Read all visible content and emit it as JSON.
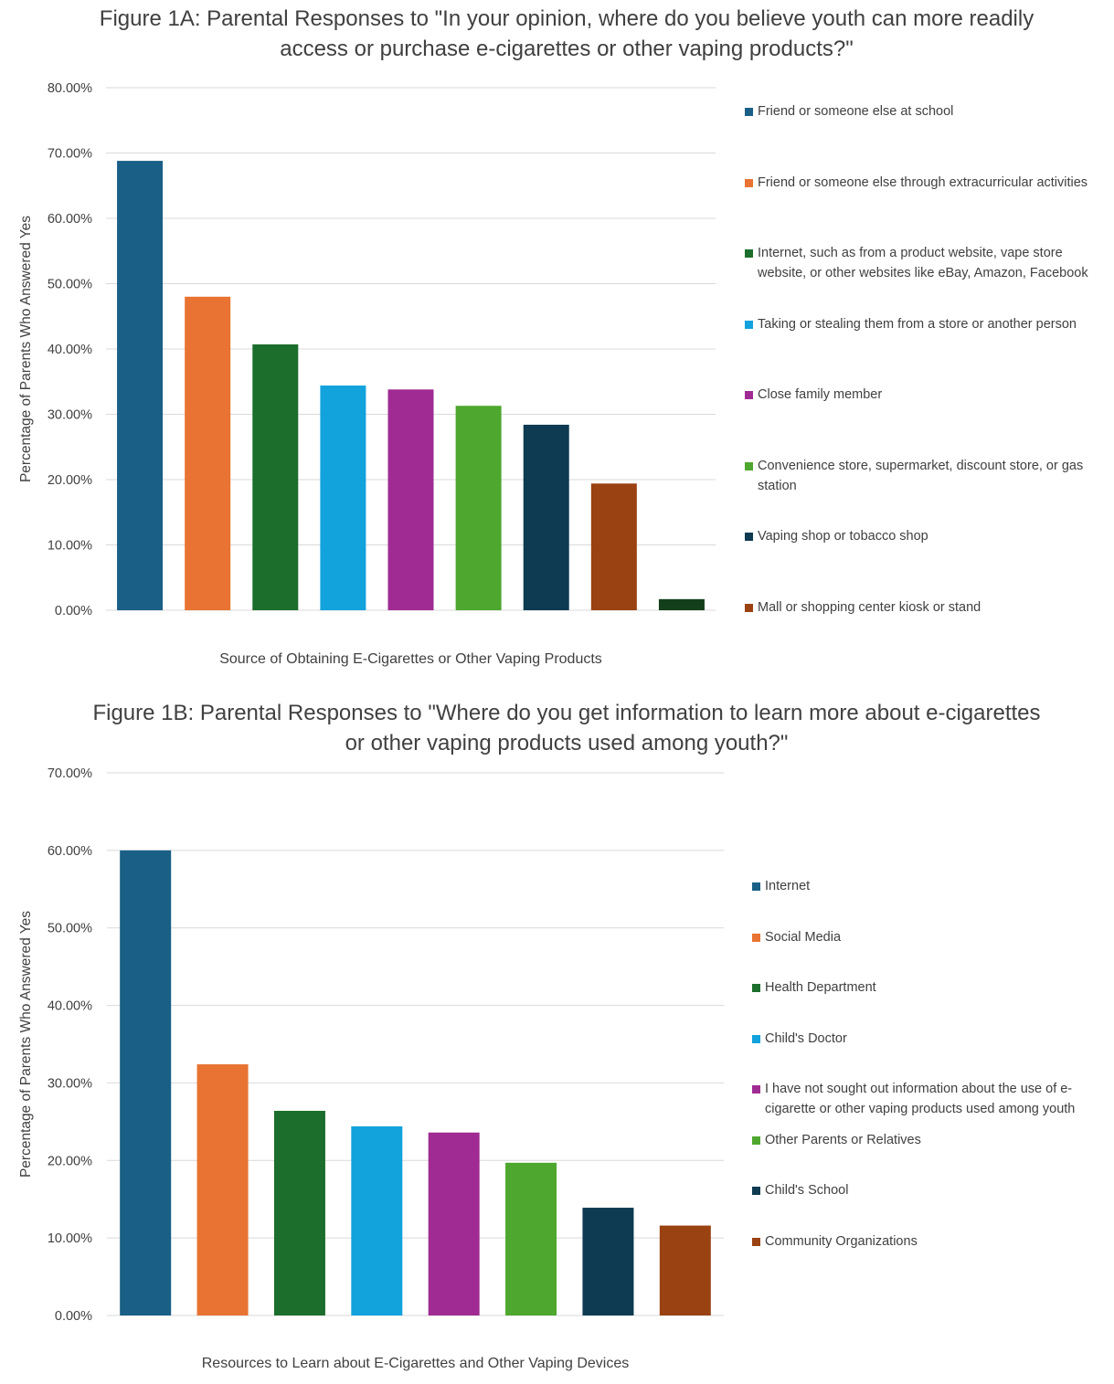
{
  "chart_data": [
    {
      "type": "bar",
      "title": "Figure 1A: Parental Responses to \"In your opinion, where do you believe youth can more readily access or purchase e-cigarettes or other vaping products?\"",
      "xlabel": "Source of Obtaining E-Cigarettes or Other Vaping Products",
      "ylabel": "Percentage of Parents Who Answered Yes",
      "ylim": [
        0,
        80
      ],
      "yticks": [
        "0.00%",
        "10.00%",
        "20.00%",
        "30.00%",
        "40.00%",
        "50.00%",
        "60.00%",
        "70.00%",
        "80.00%"
      ],
      "grid": true,
      "legend_position": "right",
      "series": [
        {
          "name": "Friend or someone else at school",
          "value": 68.8,
          "color": "#1a5f85"
        },
        {
          "name": "Friend or someone else through extracurricular activities",
          "value": 48.0,
          "color": "#e87332"
        },
        {
          "name": "Internet, such as from a product website, vape store website, or other websites like eBay, Amazon, Facebook",
          "value": 40.7,
          "color": "#1b6e2b"
        },
        {
          "name": "Taking or stealing them from a store or another person",
          "value": 34.4,
          "color": "#12a2dc"
        },
        {
          "name": "Close family member",
          "value": 33.8,
          "color": "#a02b93"
        },
        {
          "name": "Convenience store, supermarket, discount store, or gas station",
          "value": 31.3,
          "color": "#4ea72e"
        },
        {
          "name": "Vaping shop or tobacco shop",
          "value": 28.4,
          "color": "#0e3a52"
        },
        {
          "name": "Mall or shopping center kiosk or stand",
          "value": 19.4,
          "color": "#9a4212"
        },
        {
          "name": "",
          "value": 1.7,
          "color": "#133f1a"
        }
      ]
    },
    {
      "type": "bar",
      "title": "Figure 1B: Parental Responses to \"Where do you get information to learn more about e-cigarettes or other vaping products used among youth?\"",
      "xlabel": "Resources to Learn about E-Cigarettes and Other Vaping Devices",
      "ylabel": "Percentage of Parents Who Answered Yes",
      "ylim": [
        0,
        70
      ],
      "yticks": [
        "0.00%",
        "10.00%",
        "20.00%",
        "30.00%",
        "40.00%",
        "50.00%",
        "60.00%",
        "70.00%"
      ],
      "grid": true,
      "legend_position": "right",
      "series": [
        {
          "name": "Internet",
          "value": 60.0,
          "color": "#1a5f85"
        },
        {
          "name": "Social Media",
          "value": 32.4,
          "color": "#e87332"
        },
        {
          "name": "Health Department",
          "value": 26.4,
          "color": "#1b6e2b"
        },
        {
          "name": "Child's Doctor",
          "value": 24.4,
          "color": "#12a2dc"
        },
        {
          "name": "I have not sought out information about the use of e-cigarette or other vaping products used among youth",
          "value": 23.6,
          "color": "#a02b93"
        },
        {
          "name": "Other Parents or Relatives",
          "value": 19.7,
          "color": "#4ea72e"
        },
        {
          "name": "Child's School",
          "value": 13.9,
          "color": "#0e3a52"
        },
        {
          "name": "Community Organizations",
          "value": 11.6,
          "color": "#9a4212"
        }
      ]
    }
  ]
}
